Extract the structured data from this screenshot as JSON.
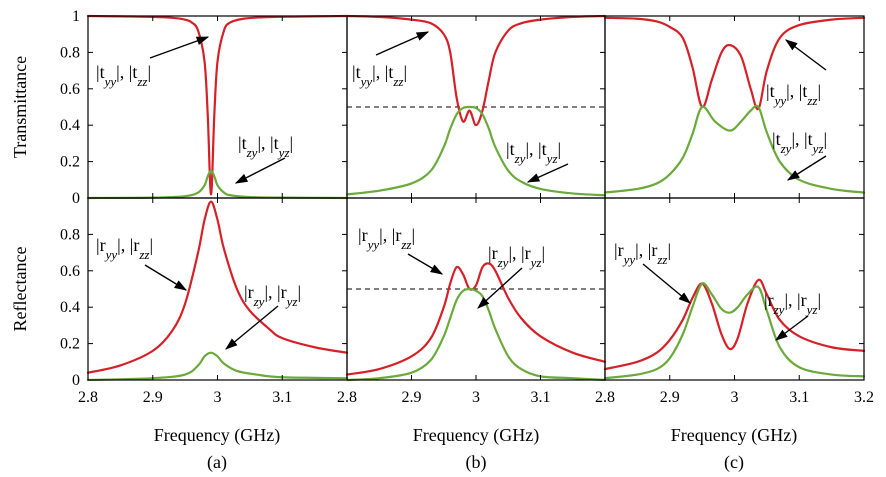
{
  "figure": {
    "ylabel_top": "Transmittance",
    "ylabel_bottom": "Reflectance",
    "xlabel": "Frequency (GHz)",
    "panel_labels": [
      "(a)",
      "(b)",
      "(c)"
    ],
    "colors": {
      "red": "#d62027",
      "green": "#6aaa3a"
    }
  },
  "annotations": {
    "t_direct": "|t_yy|, |t_zz|",
    "t_cross": "|t_zy|, |t_yz|",
    "r_direct": "|r_yy|, |r_zz|",
    "r_cross": "|r_zy|, |r_yz|"
  },
  "chart_data": [
    {
      "type": "line",
      "panel": "a",
      "quantity": "transmittance",
      "ylabel": "Transmittance",
      "xlabel": "Frequency (GHz)",
      "xlim": [
        2.8,
        3.2
      ],
      "ylim": [
        0,
        1
      ],
      "xticks": [],
      "yticks": [
        0,
        0.2,
        0.4,
        0.6,
        0.8,
        1
      ],
      "series": [
        {
          "name": "|t_yy|, |t_zz|",
          "color": "#d62027",
          "x": [
            2.8,
            2.85,
            2.9,
            2.93,
            2.95,
            2.96,
            2.97,
            2.98,
            2.985,
            2.99,
            2.995,
            3.0,
            3.01,
            3.02,
            3.04,
            3.07,
            3.1,
            3.15,
            3.2
          ],
          "y": [
            1.0,
            0.998,
            0.995,
            0.99,
            0.98,
            0.965,
            0.92,
            0.75,
            0.45,
            0.02,
            0.45,
            0.75,
            0.92,
            0.965,
            0.985,
            0.993,
            0.996,
            0.998,
            1.0
          ]
        },
        {
          "name": "|t_zy|, |t_yz|",
          "color": "#6aaa3a",
          "x": [
            2.8,
            2.9,
            2.95,
            2.97,
            2.98,
            2.985,
            2.99,
            2.995,
            3.0,
            3.01,
            3.02,
            3.05,
            3.1,
            3.2
          ],
          "y": [
            0.0,
            0.002,
            0.01,
            0.03,
            0.07,
            0.12,
            0.15,
            0.12,
            0.07,
            0.03,
            0.015,
            0.005,
            0.002,
            0.0
          ]
        }
      ]
    },
    {
      "type": "line",
      "panel": "b",
      "quantity": "transmittance",
      "xlim": [
        2.8,
        3.2
      ],
      "ylim": [
        0,
        1
      ],
      "reference_line": 0.5,
      "series": [
        {
          "name": "|t_yy|, |t_zz|",
          "color": "#d62027",
          "x": [
            2.8,
            2.85,
            2.9,
            2.93,
            2.95,
            2.96,
            2.97,
            2.98,
            2.99,
            3.0,
            3.01,
            3.02,
            3.03,
            3.05,
            3.07,
            3.1,
            3.15,
            3.2
          ],
          "y": [
            1.0,
            0.995,
            0.98,
            0.96,
            0.9,
            0.8,
            0.55,
            0.42,
            0.48,
            0.4,
            0.48,
            0.65,
            0.8,
            0.92,
            0.96,
            0.98,
            0.995,
            1.0
          ]
        },
        {
          "name": "|t_zy|, |t_yz|",
          "color": "#6aaa3a",
          "x": [
            2.8,
            2.85,
            2.9,
            2.93,
            2.95,
            2.96,
            2.97,
            2.98,
            2.99,
            3.0,
            3.01,
            3.02,
            3.03,
            3.05,
            3.07,
            3.1,
            3.15,
            3.2
          ],
          "y": [
            0.02,
            0.04,
            0.08,
            0.15,
            0.28,
            0.38,
            0.46,
            0.495,
            0.5,
            0.495,
            0.46,
            0.38,
            0.28,
            0.15,
            0.09,
            0.05,
            0.025,
            0.015
          ]
        }
      ]
    },
    {
      "type": "line",
      "panel": "c",
      "quantity": "transmittance",
      "xlim": [
        2.8,
        3.2
      ],
      "ylim": [
        0,
        1
      ],
      "series": [
        {
          "name": "|t_yy|, |t_zz|",
          "color": "#d62027",
          "x": [
            2.8,
            2.85,
            2.88,
            2.9,
            2.92,
            2.935,
            2.95,
            2.965,
            2.98,
            2.993,
            3.01,
            3.025,
            3.037,
            3.05,
            3.07,
            3.1,
            3.15,
            3.2
          ],
          "y": [
            0.99,
            0.985,
            0.97,
            0.94,
            0.88,
            0.72,
            0.5,
            0.65,
            0.8,
            0.84,
            0.78,
            0.6,
            0.49,
            0.7,
            0.88,
            0.95,
            0.98,
            0.99
          ]
        },
        {
          "name": "|t_zy|, |t_yz|",
          "color": "#6aaa3a",
          "x": [
            2.8,
            2.85,
            2.88,
            2.9,
            2.92,
            2.935,
            2.95,
            2.97,
            2.993,
            3.01,
            3.025,
            3.037,
            3.05,
            3.07,
            3.1,
            3.15,
            3.2
          ],
          "y": [
            0.03,
            0.05,
            0.08,
            0.13,
            0.22,
            0.35,
            0.5,
            0.42,
            0.37,
            0.42,
            0.48,
            0.5,
            0.36,
            0.2,
            0.1,
            0.05,
            0.03
          ]
        }
      ]
    },
    {
      "type": "line",
      "panel": "a",
      "quantity": "reflectance",
      "ylabel": "Reflectance",
      "xlabel": "Frequency (GHz)",
      "xlim": [
        2.8,
        3.2
      ],
      "ylim": [
        0,
        1
      ],
      "xticks": [
        2.8,
        2.9,
        3.0,
        3.1
      ],
      "yticks": [
        0,
        0.2,
        0.4,
        0.6,
        0.8
      ],
      "series": [
        {
          "name": "|r_yy|, |r_zz|",
          "color": "#d62027",
          "x": [
            2.8,
            2.85,
            2.9,
            2.93,
            2.95,
            2.97,
            2.98,
            2.99,
            3.0,
            3.01,
            3.03,
            3.05,
            3.08,
            3.1,
            3.15,
            3.2
          ],
          "y": [
            0.04,
            0.08,
            0.16,
            0.27,
            0.42,
            0.7,
            0.88,
            0.98,
            0.88,
            0.72,
            0.5,
            0.38,
            0.28,
            0.23,
            0.18,
            0.15
          ]
        },
        {
          "name": "|r_zy|, |r_yz|",
          "color": "#6aaa3a",
          "x": [
            2.8,
            2.9,
            2.95,
            2.97,
            2.98,
            2.99,
            3.0,
            3.01,
            3.03,
            3.06,
            3.1,
            3.2
          ],
          "y": [
            0.0,
            0.01,
            0.03,
            0.08,
            0.13,
            0.15,
            0.13,
            0.09,
            0.05,
            0.03,
            0.015,
            0.01
          ]
        }
      ]
    },
    {
      "type": "line",
      "panel": "b",
      "quantity": "reflectance",
      "xlabel": "Frequency (GHz)",
      "xlim": [
        2.8,
        3.2
      ],
      "ylim": [
        0,
        1
      ],
      "reference_line": 0.5,
      "xticks": [
        2.8,
        2.9,
        3.0,
        3.1
      ],
      "series": [
        {
          "name": "|r_yy|, |r_zz|",
          "color": "#d62027",
          "x": [
            2.8,
            2.85,
            2.9,
            2.93,
            2.95,
            2.96,
            2.97,
            2.98,
            2.99,
            3.0,
            3.01,
            3.02,
            3.03,
            3.05,
            3.07,
            3.1,
            3.15,
            3.2
          ],
          "y": [
            0.03,
            0.06,
            0.13,
            0.23,
            0.4,
            0.53,
            0.62,
            0.58,
            0.5,
            0.52,
            0.62,
            0.64,
            0.6,
            0.45,
            0.34,
            0.24,
            0.15,
            0.1
          ]
        },
        {
          "name": "|r_zy|, |r_yz|",
          "color": "#6aaa3a",
          "x": [
            2.8,
            2.85,
            2.9,
            2.93,
            2.95,
            2.96,
            2.97,
            2.98,
            2.99,
            3.0,
            3.01,
            3.02,
            3.03,
            3.05,
            3.07,
            3.1,
            3.15,
            3.2
          ],
          "y": [
            0.0,
            0.01,
            0.04,
            0.11,
            0.24,
            0.34,
            0.44,
            0.49,
            0.5,
            0.49,
            0.46,
            0.38,
            0.28,
            0.13,
            0.06,
            0.02,
            0.01,
            0.0
          ]
        }
      ]
    },
    {
      "type": "line",
      "panel": "c",
      "quantity": "reflectance",
      "xlabel": "Frequency (GHz)",
      "xlim": [
        2.8,
        3.2
      ],
      "ylim": [
        0,
        1
      ],
      "xticks": [
        2.8,
        2.9,
        3.0,
        3.1,
        3.2
      ],
      "series": [
        {
          "name": "|r_yy|, |r_zz|",
          "color": "#d62027",
          "x": [
            2.8,
            2.85,
            2.88,
            2.9,
            2.92,
            2.935,
            2.95,
            2.965,
            2.98,
            2.993,
            3.005,
            3.02,
            3.037,
            3.05,
            3.07,
            3.1,
            3.15,
            3.2
          ],
          "y": [
            0.06,
            0.1,
            0.15,
            0.22,
            0.33,
            0.45,
            0.53,
            0.42,
            0.25,
            0.17,
            0.23,
            0.42,
            0.55,
            0.47,
            0.33,
            0.24,
            0.18,
            0.16
          ]
        },
        {
          "name": "|r_zy|, |r_yz|",
          "color": "#6aaa3a",
          "x": [
            2.8,
            2.85,
            2.88,
            2.9,
            2.92,
            2.935,
            2.95,
            2.965,
            2.98,
            2.993,
            3.005,
            3.02,
            3.037,
            3.05,
            3.07,
            3.1,
            3.15,
            3.2
          ],
          "y": [
            0.01,
            0.03,
            0.06,
            0.12,
            0.25,
            0.4,
            0.53,
            0.47,
            0.39,
            0.37,
            0.4,
            0.47,
            0.51,
            0.38,
            0.18,
            0.07,
            0.03,
            0.02
          ]
        }
      ]
    }
  ]
}
